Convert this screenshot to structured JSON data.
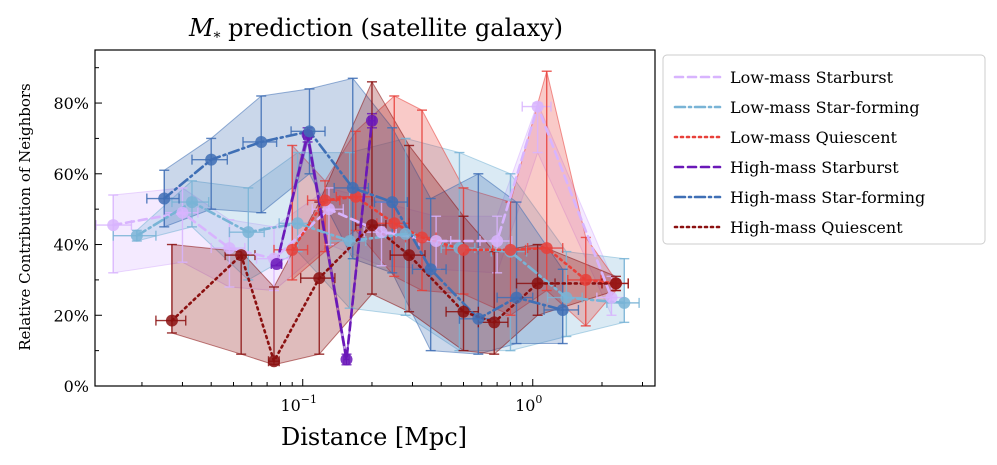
{
  "chart_data": {
    "type": "line",
    "title": {
      "symbol": "M",
      "subscript": "*",
      "text": " prediction (satellite galaxy)"
    },
    "xlabel": "Distance [Mpc]",
    "ylabel": "Relative Contribution of Neighbors",
    "xscale": "log",
    "xlim": [
      0.0125,
      3.4
    ],
    "ylim": [
      0,
      0.95
    ],
    "x_ticks": [
      {
        "value": 0.1,
        "base": "10",
        "exp": "−1"
      },
      {
        "value": 1,
        "base": "10",
        "exp": "0"
      }
    ],
    "y_ticks": [
      {
        "value": 0.0,
        "label": "0%"
      },
      {
        "value": 0.2,
        "label": "20%"
      },
      {
        "value": 0.4,
        "label": "40%"
      },
      {
        "value": 0.6,
        "label": "60%"
      },
      {
        "value": 0.8,
        "label": "80%"
      }
    ],
    "legend_position": "outside-right",
    "series": [
      {
        "name": "Low-mass Starburst",
        "color": "#d8b4fe",
        "dash": "8,5",
        "x": [
          0.015,
          0.03,
          0.048,
          0.075,
          0.13,
          0.22,
          0.38,
          0.7,
          1.05,
          2.2
        ],
        "y": [
          0.455,
          0.49,
          0.39,
          0.36,
          0.5,
          0.435,
          0.41,
          0.41,
          0.79,
          0.25
        ],
        "lo": [
          0.32,
          0.35,
          0.28,
          0.27,
          0.4,
          0.34,
          0.33,
          0.32,
          0.66,
          0.2
        ],
        "hi": [
          0.54,
          0.56,
          0.47,
          0.45,
          0.56,
          0.52,
          0.48,
          0.48,
          0.8,
          0.31
        ],
        "xerr": [
          0.003,
          0.005,
          0.008,
          0.012,
          0.02,
          0.035,
          0.06,
          0.11,
          0.15,
          0.3
        ]
      },
      {
        "name": "Low-mass Star-forming",
        "color": "#79b4d6",
        "dash": "10,4,2,4",
        "x": [
          0.019,
          0.033,
          0.058,
          0.095,
          0.16,
          0.28,
          0.48,
          0.8,
          1.4,
          2.5
        ],
        "y": [
          0.425,
          0.52,
          0.435,
          0.46,
          0.41,
          0.43,
          0.39,
          0.38,
          0.25,
          0.235
        ],
        "lo": [
          0.41,
          0.45,
          0.3,
          0.38,
          0.22,
          0.2,
          0.1,
          0.1,
          0.14,
          0.18
        ],
        "hi": [
          0.44,
          0.58,
          0.56,
          0.66,
          0.66,
          0.7,
          0.66,
          0.6,
          0.38,
          0.36
        ],
        "xerr": [
          0.004,
          0.006,
          0.01,
          0.016,
          0.028,
          0.05,
          0.08,
          0.14,
          0.24,
          0.4
        ]
      },
      {
        "name": "Low-mass Quiescent",
        "color": "#e8403a",
        "dash": "2,4",
        "x": [
          0.09,
          0.125,
          0.17,
          0.25,
          0.33,
          0.5,
          0.8,
          1.15,
          1.7,
          2.3
        ],
        "y": [
          0.385,
          0.525,
          0.535,
          0.46,
          0.42,
          0.385,
          0.385,
          0.39,
          0.3,
          0.29
        ],
        "lo": [
          0.3,
          0.38,
          0.44,
          0.31,
          0.27,
          0.26,
          0.2,
          0.27,
          0.17,
          0.27
        ],
        "hi": [
          0.68,
          0.58,
          0.72,
          0.82,
          0.78,
          0.56,
          0.52,
          0.89,
          0.42,
          0.3
        ],
        "xerr": [
          0.015,
          0.02,
          0.03,
          0.04,
          0.05,
          0.08,
          0.13,
          0.2,
          0.28,
          0.3
        ]
      },
      {
        "name": "High-mass Starburst",
        "color": "#6a18b8",
        "dash": "8,5",
        "x": [
          0.077,
          0.105,
          0.155,
          0.2
        ],
        "y": [
          0.345,
          0.71,
          0.075,
          0.75
        ],
        "lo": [
          0.34,
          0.69,
          0.06,
          0.73
        ],
        "hi": [
          0.35,
          0.73,
          0.09,
          0.77
        ],
        "xerr": [
          0.004,
          0.004,
          0.004,
          0.006
        ]
      },
      {
        "name": "High-mass Star-forming",
        "color": "#3f6fb5",
        "dash": "10,4,2,4",
        "x": [
          0.025,
          0.04,
          0.066,
          0.107,
          0.165,
          0.245,
          0.36,
          0.58,
          0.85,
          1.35
        ],
        "y": [
          0.53,
          0.64,
          0.69,
          0.72,
          0.56,
          0.52,
          0.33,
          0.19,
          0.25,
          0.215
        ],
        "lo": [
          0.45,
          0.5,
          0.49,
          0.6,
          0.36,
          0.32,
          0.1,
          0.09,
          0.12,
          0.12
        ],
        "hi": [
          0.61,
          0.7,
          0.82,
          0.84,
          0.87,
          0.73,
          0.53,
          0.6,
          0.52,
          0.33
        ],
        "xerr": [
          0.004,
          0.007,
          0.011,
          0.018,
          0.028,
          0.04,
          0.06,
          0.1,
          0.15,
          0.23
        ]
      },
      {
        "name": "High-mass Quiescent",
        "color": "#8b1010",
        "dash": "2,4",
        "x": [
          0.027,
          0.054,
          0.075,
          0.118,
          0.2,
          0.29,
          0.5,
          0.68,
          1.05,
          2.3
        ],
        "y": [
          0.185,
          0.37,
          0.07,
          0.305,
          0.455,
          0.37,
          0.21,
          0.18,
          0.29,
          0.29
        ],
        "lo": [
          0.15,
          0.09,
          0.06,
          0.09,
          0.26,
          0.21,
          0.1,
          0.09,
          0.2,
          0.27
        ],
        "hi": [
          0.4,
          0.38,
          0.28,
          0.52,
          0.86,
          0.68,
          0.48,
          0.38,
          0.4,
          0.31
        ],
        "xerr": [
          0.004,
          0.008,
          0.004,
          0.02,
          0.03,
          0.05,
          0.08,
          0.1,
          0.2,
          0.3
        ]
      }
    ]
  }
}
